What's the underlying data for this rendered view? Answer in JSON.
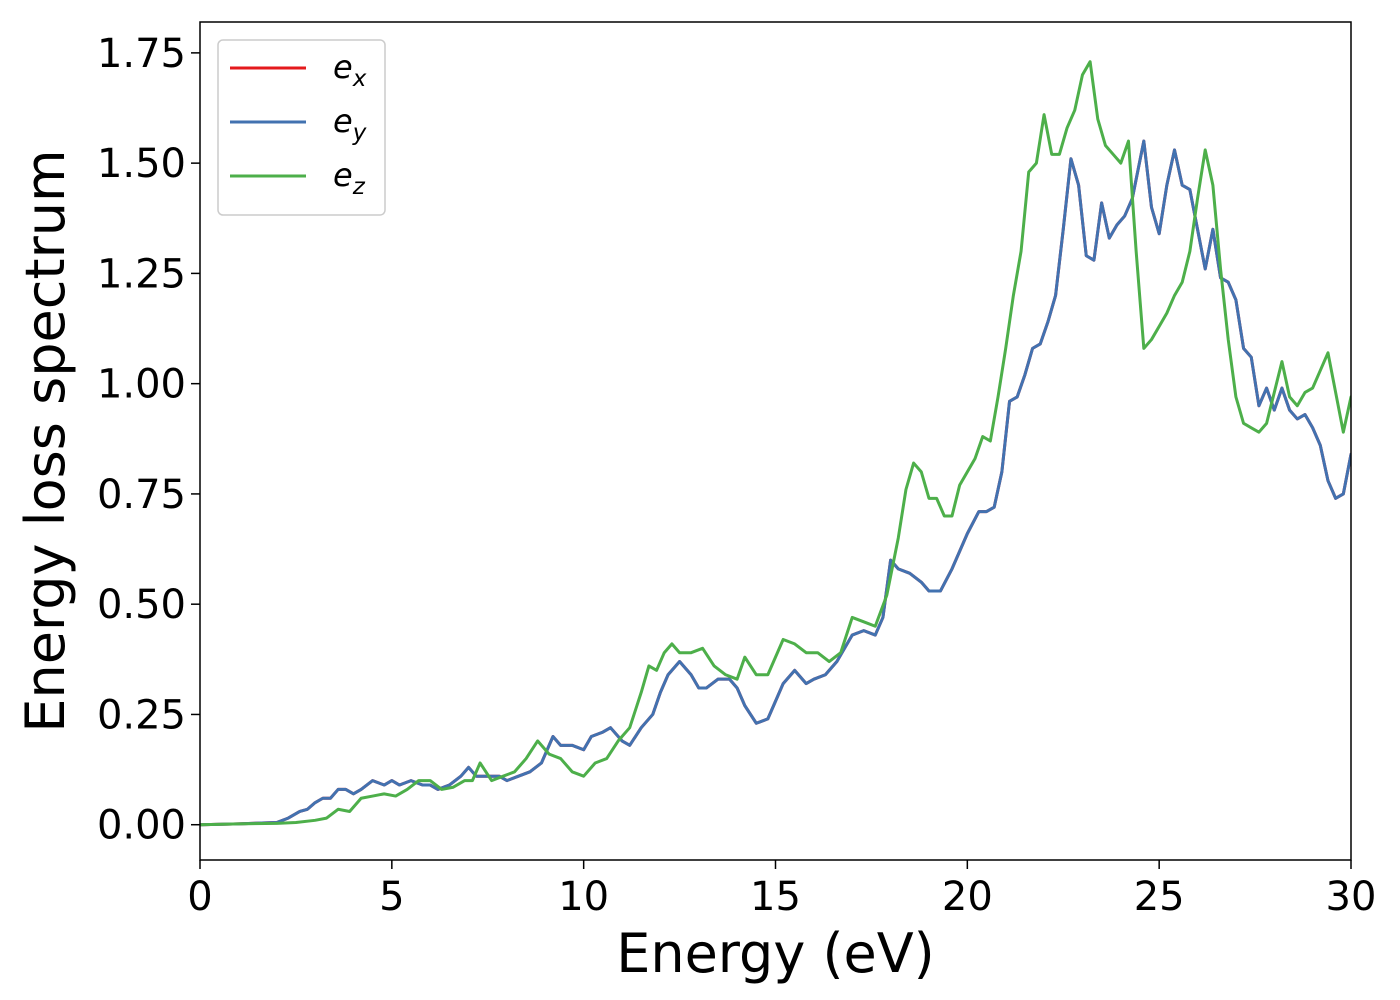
{
  "chart_data": {
    "type": "line",
    "xlabel": "Energy (eV)",
    "ylabel": "Energy loss spectrum",
    "xlim": [
      0,
      30
    ],
    "ylim": [
      -0.08,
      1.82
    ],
    "xticks": [
      0,
      5,
      10,
      15,
      20,
      25,
      30
    ],
    "xtick_labels": [
      "0",
      "5",
      "10",
      "15",
      "20",
      "25",
      "30"
    ],
    "yticks": [
      0.0,
      0.25,
      0.5,
      0.75,
      1.0,
      1.25,
      1.5,
      1.75
    ],
    "ytick_labels": [
      "0.00",
      "0.25",
      "0.50",
      "0.75",
      "1.00",
      "1.25",
      "1.50",
      "1.75"
    ],
    "grid": false,
    "legend_position": "top-left",
    "series": [
      {
        "name": "e",
        "subscript": "x",
        "color": "#e41a1c",
        "x": [
          0,
          1,
          2,
          2.3,
          2.6,
          2.8,
          3.0,
          3.2,
          3.4,
          3.6,
          3.8,
          4.0,
          4.2,
          4.5,
          4.8,
          5.0,
          5.2,
          5.5,
          5.8,
          6.0,
          6.2,
          6.5,
          6.8,
          7.0,
          7.2,
          7.5,
          7.8,
          8.0,
          8.3,
          8.6,
          8.9,
          9.2,
          9.4,
          9.7,
          10.0,
          10.2,
          10.5,
          10.7,
          11.0,
          11.2,
          11.5,
          11.8,
          12.0,
          12.2,
          12.5,
          12.8,
          13.0,
          13.2,
          13.5,
          13.8,
          14.0,
          14.2,
          14.5,
          14.8,
          15.0,
          15.2,
          15.5,
          15.8,
          16.0,
          16.3,
          16.6,
          16.8,
          17.0,
          17.3,
          17.6,
          17.8,
          18.0,
          18.2,
          18.5,
          18.8,
          19.0,
          19.3,
          19.6,
          19.8,
          20.0,
          20.3,
          20.5,
          20.7,
          20.9,
          21.1,
          21.3,
          21.5,
          21.7,
          21.9,
          22.1,
          22.3,
          22.5,
          22.7,
          22.9,
          23.1,
          23.3,
          23.5,
          23.7,
          23.9,
          24.1,
          24.3,
          24.6,
          24.8,
          25.0,
          25.2,
          25.4,
          25.6,
          25.8,
          26.0,
          26.2,
          26.4,
          26.6,
          26.8,
          27.0,
          27.2,
          27.4,
          27.6,
          27.8,
          28.0,
          28.2,
          28.4,
          28.6,
          28.8,
          29.0,
          29.2,
          29.4,
          29.6,
          29.8,
          30.0
        ],
        "y": [
          0.0,
          0.002,
          0.005,
          0.015,
          0.03,
          0.035,
          0.05,
          0.06,
          0.06,
          0.08,
          0.08,
          0.07,
          0.08,
          0.1,
          0.09,
          0.1,
          0.09,
          0.1,
          0.09,
          0.09,
          0.08,
          0.09,
          0.11,
          0.13,
          0.11,
          0.11,
          0.11,
          0.1,
          0.11,
          0.12,
          0.14,
          0.2,
          0.18,
          0.18,
          0.17,
          0.2,
          0.21,
          0.22,
          0.19,
          0.18,
          0.22,
          0.25,
          0.3,
          0.34,
          0.37,
          0.34,
          0.31,
          0.31,
          0.33,
          0.33,
          0.31,
          0.27,
          0.23,
          0.24,
          0.28,
          0.32,
          0.35,
          0.32,
          0.33,
          0.34,
          0.37,
          0.4,
          0.43,
          0.44,
          0.43,
          0.47,
          0.6,
          0.58,
          0.57,
          0.55,
          0.53,
          0.53,
          0.58,
          0.62,
          0.66,
          0.71,
          0.71,
          0.72,
          0.8,
          0.96,
          0.97,
          1.02,
          1.08,
          1.09,
          1.14,
          1.2,
          1.35,
          1.51,
          1.45,
          1.29,
          1.28,
          1.41,
          1.33,
          1.36,
          1.38,
          1.42,
          1.55,
          1.4,
          1.34,
          1.45,
          1.53,
          1.45,
          1.44,
          1.35,
          1.26,
          1.35,
          1.24,
          1.23,
          1.19,
          1.08,
          1.06,
          0.95,
          0.99,
          0.94,
          0.99,
          0.94,
          0.92,
          0.93,
          0.9,
          0.86,
          0.78,
          0.74,
          0.75,
          0.84
        ]
      },
      {
        "name": "e",
        "subscript": "y",
        "color": "#4272b0",
        "x": [
          0,
          1,
          2,
          2.3,
          2.6,
          2.8,
          3.0,
          3.2,
          3.4,
          3.6,
          3.8,
          4.0,
          4.2,
          4.5,
          4.8,
          5.0,
          5.2,
          5.5,
          5.8,
          6.0,
          6.2,
          6.5,
          6.8,
          7.0,
          7.2,
          7.5,
          7.8,
          8.0,
          8.3,
          8.6,
          8.9,
          9.2,
          9.4,
          9.7,
          10.0,
          10.2,
          10.5,
          10.7,
          11.0,
          11.2,
          11.5,
          11.8,
          12.0,
          12.2,
          12.5,
          12.8,
          13.0,
          13.2,
          13.5,
          13.8,
          14.0,
          14.2,
          14.5,
          14.8,
          15.0,
          15.2,
          15.5,
          15.8,
          16.0,
          16.3,
          16.6,
          16.8,
          17.0,
          17.3,
          17.6,
          17.8,
          18.0,
          18.2,
          18.5,
          18.8,
          19.0,
          19.3,
          19.6,
          19.8,
          20.0,
          20.3,
          20.5,
          20.7,
          20.9,
          21.1,
          21.3,
          21.5,
          21.7,
          21.9,
          22.1,
          22.3,
          22.5,
          22.7,
          22.9,
          23.1,
          23.3,
          23.5,
          23.7,
          23.9,
          24.1,
          24.3,
          24.6,
          24.8,
          25.0,
          25.2,
          25.4,
          25.6,
          25.8,
          26.0,
          26.2,
          26.4,
          26.6,
          26.8,
          27.0,
          27.2,
          27.4,
          27.6,
          27.8,
          28.0,
          28.2,
          28.4,
          28.6,
          28.8,
          29.0,
          29.2,
          29.4,
          29.6,
          29.8,
          30.0
        ],
        "y": [
          0.0,
          0.002,
          0.005,
          0.015,
          0.03,
          0.035,
          0.05,
          0.06,
          0.06,
          0.08,
          0.08,
          0.07,
          0.08,
          0.1,
          0.09,
          0.1,
          0.09,
          0.1,
          0.09,
          0.09,
          0.08,
          0.09,
          0.11,
          0.13,
          0.11,
          0.11,
          0.11,
          0.1,
          0.11,
          0.12,
          0.14,
          0.2,
          0.18,
          0.18,
          0.17,
          0.2,
          0.21,
          0.22,
          0.19,
          0.18,
          0.22,
          0.25,
          0.3,
          0.34,
          0.37,
          0.34,
          0.31,
          0.31,
          0.33,
          0.33,
          0.31,
          0.27,
          0.23,
          0.24,
          0.28,
          0.32,
          0.35,
          0.32,
          0.33,
          0.34,
          0.37,
          0.4,
          0.43,
          0.44,
          0.43,
          0.47,
          0.6,
          0.58,
          0.57,
          0.55,
          0.53,
          0.53,
          0.58,
          0.62,
          0.66,
          0.71,
          0.71,
          0.72,
          0.8,
          0.96,
          0.97,
          1.02,
          1.08,
          1.09,
          1.14,
          1.2,
          1.35,
          1.51,
          1.45,
          1.29,
          1.28,
          1.41,
          1.33,
          1.36,
          1.38,
          1.42,
          1.55,
          1.4,
          1.34,
          1.45,
          1.53,
          1.45,
          1.44,
          1.35,
          1.26,
          1.35,
          1.24,
          1.23,
          1.19,
          1.08,
          1.06,
          0.95,
          0.99,
          0.94,
          0.99,
          0.94,
          0.92,
          0.93,
          0.9,
          0.86,
          0.78,
          0.74,
          0.75,
          0.84
        ]
      },
      {
        "name": "e",
        "subscript": "z",
        "color": "#4daf4a",
        "x": [
          0,
          1,
          2,
          2.5,
          3.0,
          3.3,
          3.6,
          3.9,
          4.2,
          4.5,
          4.8,
          5.1,
          5.4,
          5.7,
          6.0,
          6.3,
          6.6,
          6.9,
          7.1,
          7.3,
          7.6,
          7.9,
          8.2,
          8.5,
          8.8,
          9.1,
          9.4,
          9.7,
          10.0,
          10.3,
          10.6,
          10.9,
          11.2,
          11.5,
          11.7,
          11.9,
          12.1,
          12.3,
          12.5,
          12.8,
          13.1,
          13.4,
          13.7,
          14.0,
          14.2,
          14.5,
          14.8,
          15.0,
          15.2,
          15.5,
          15.8,
          16.1,
          16.4,
          16.7,
          17.0,
          17.3,
          17.6,
          17.9,
          18.2,
          18.4,
          18.6,
          18.8,
          19.0,
          19.2,
          19.4,
          19.6,
          19.8,
          20.0,
          20.2,
          20.4,
          20.6,
          20.8,
          21.0,
          21.2,
          21.4,
          21.6,
          21.8,
          22.0,
          22.2,
          22.4,
          22.6,
          22.8,
          23.0,
          23.2,
          23.4,
          23.6,
          23.8,
          24.0,
          24.2,
          24.4,
          24.6,
          24.8,
          25.0,
          25.2,
          25.4,
          25.6,
          25.8,
          26.0,
          26.2,
          26.4,
          26.6,
          26.8,
          27.0,
          27.2,
          27.4,
          27.6,
          27.8,
          28.0,
          28.2,
          28.4,
          28.6,
          28.8,
          29.0,
          29.2,
          29.4,
          29.6,
          29.8,
          30.0
        ],
        "y": [
          0.0,
          0.002,
          0.003,
          0.005,
          0.01,
          0.015,
          0.035,
          0.03,
          0.06,
          0.065,
          0.07,
          0.065,
          0.08,
          0.1,
          0.1,
          0.08,
          0.085,
          0.1,
          0.1,
          0.14,
          0.1,
          0.11,
          0.12,
          0.15,
          0.19,
          0.16,
          0.15,
          0.12,
          0.11,
          0.14,
          0.15,
          0.19,
          0.22,
          0.3,
          0.36,
          0.35,
          0.39,
          0.41,
          0.39,
          0.39,
          0.4,
          0.36,
          0.34,
          0.33,
          0.38,
          0.34,
          0.34,
          0.38,
          0.42,
          0.41,
          0.39,
          0.39,
          0.37,
          0.39,
          0.47,
          0.46,
          0.45,
          0.52,
          0.65,
          0.76,
          0.82,
          0.8,
          0.74,
          0.74,
          0.7,
          0.7,
          0.77,
          0.8,
          0.83,
          0.88,
          0.87,
          0.97,
          1.08,
          1.2,
          1.3,
          1.48,
          1.5,
          1.61,
          1.52,
          1.52,
          1.58,
          1.62,
          1.7,
          1.73,
          1.6,
          1.54,
          1.52,
          1.5,
          1.55,
          1.3,
          1.08,
          1.1,
          1.13,
          1.16,
          1.2,
          1.23,
          1.3,
          1.42,
          1.53,
          1.45,
          1.26,
          1.1,
          0.97,
          0.91,
          0.9,
          0.89,
          0.91,
          0.98,
          1.05,
          0.97,
          0.95,
          0.98,
          0.99,
          1.03,
          1.07,
          0.98,
          0.89,
          0.97
        ]
      }
    ]
  }
}
